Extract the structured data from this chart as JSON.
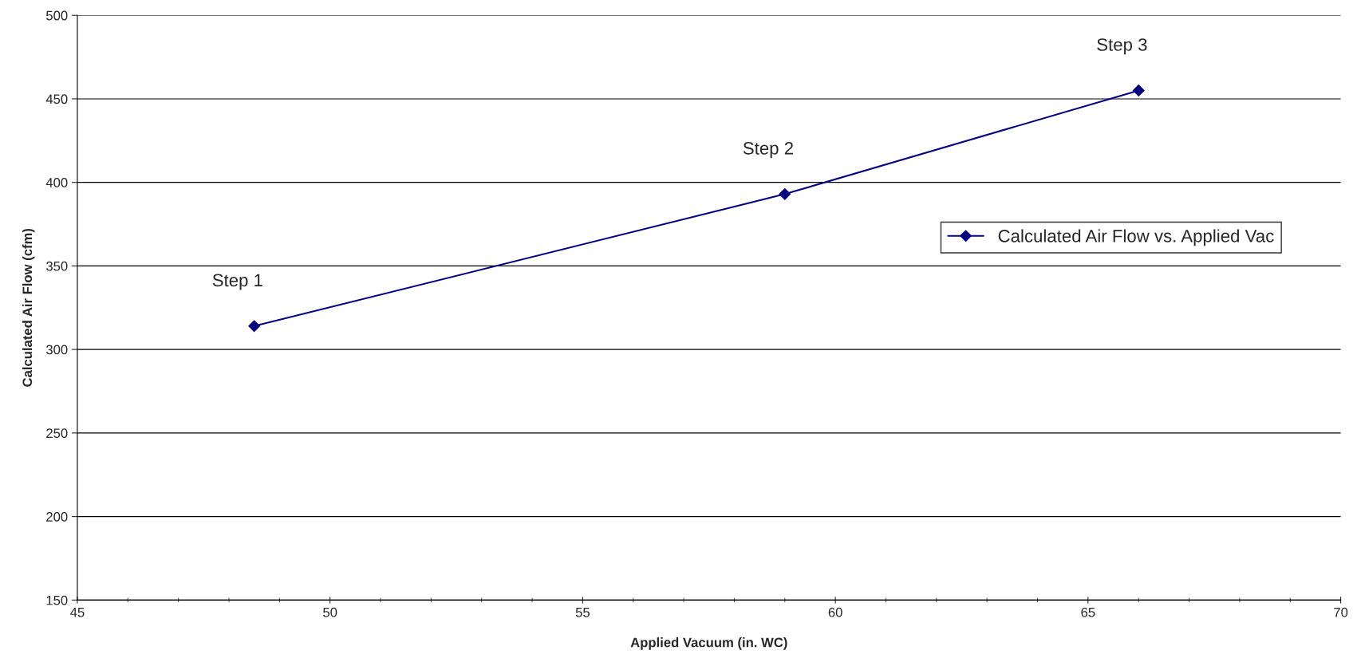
{
  "chart_data": {
    "type": "line",
    "xlabel": "Applied Vacuum (in. WC)",
    "ylabel": "Calculated Air Flow (cfm)",
    "x": [
      48.5,
      59,
      66
    ],
    "series": [
      {
        "name": "Calculated Air Flow vs. Applied Vac",
        "color": "#000080",
        "values": [
          314,
          393,
          455
        ]
      }
    ],
    "xlim": [
      45,
      70
    ],
    "xticks": [
      45,
      50,
      55,
      60,
      65,
      70
    ],
    "ylim": [
      150,
      500
    ],
    "yticks": [
      150,
      200,
      250,
      300,
      350,
      400,
      450,
      500
    ],
    "grid": "y",
    "legend": "right",
    "marker": "diamond",
    "line_style": "solid",
    "annotations": [
      {
        "text": "Step 1",
        "x": 48.5,
        "y": 314
      },
      {
        "text": "Step 2",
        "x": 59,
        "y": 393
      },
      {
        "text": "Step 3",
        "x": 66,
        "y": 455
      }
    ]
  }
}
